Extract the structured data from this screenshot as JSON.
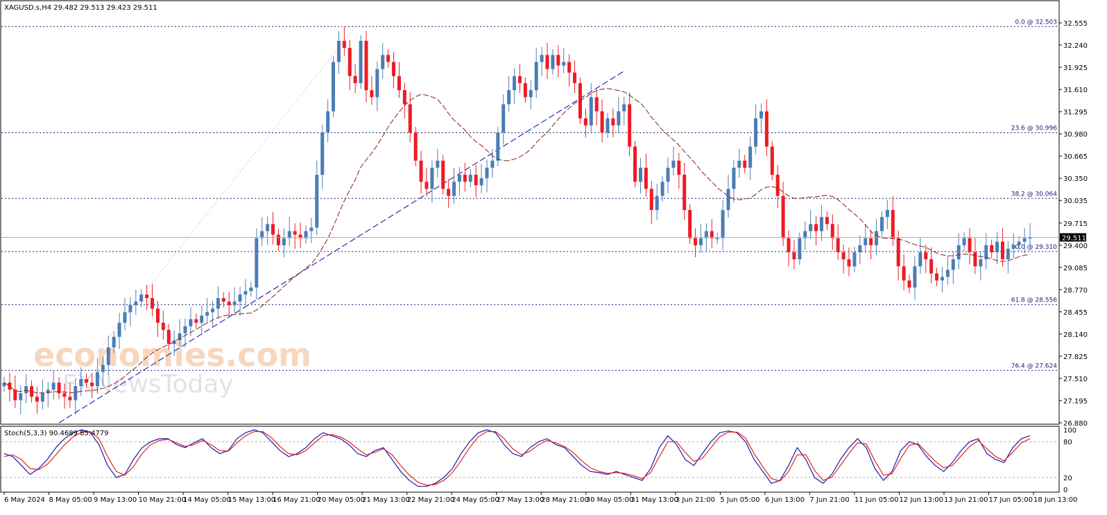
{
  "header": {
    "symbol_info": "XAGUSD.s,H4  29.482 29.513 29.423 29.511",
    "stoch_info": "Stoch(5,3,3) 90.4689 85.4779"
  },
  "watermark": {
    "line1": "economies.com",
    "line2": "FXNewsToday"
  },
  "chart_data": {
    "type": "candlestick",
    "symbol": "XAGUSD.s",
    "timeframe": "H4",
    "current_price": "29.511",
    "ylim": [
      26.88,
      32.555
    ],
    "price_ticks": [
      "32.555",
      "32.240",
      "31.925",
      "31.610",
      "31.295",
      "30.980",
      "30.665",
      "30.350",
      "30.035",
      "29.715",
      "29.400",
      "29.085",
      "28.770",
      "28.455",
      "28.140",
      "27.825",
      "27.510",
      "27.195",
      "26.880"
    ],
    "x_ticks": [
      "6 May 2024",
      "8 May 05:00",
      "9 May 13:00",
      "10 May 21:00",
      "14 May 05:00",
      "15 May 13:00",
      "16 May 21:00",
      "20 May 05:00",
      "21 May 13:00",
      "22 May 21:00",
      "24 May 05:00",
      "27 May 13:00",
      "28 May 21:00",
      "30 May 05:00",
      "31 May 13:00",
      "3 Jun 21:00",
      "5 Jun 05:00",
      "6 Jun 13:00",
      "7 Jun 21:00",
      "11 Jun 05:00",
      "12 Jun 13:00",
      "13 Jun 21:00",
      "17 Jun 05:00",
      "18 Jun 13:00"
    ],
    "fib_levels": [
      {
        "label": "0.0 @ 32.503",
        "value": 32.503
      },
      {
        "label": "23.6 @ 30.996",
        "value": 30.996
      },
      {
        "label": "38.2 @ 30.064",
        "value": 30.064
      },
      {
        "label": "50.0 @ 29.310",
        "value": 29.31
      },
      {
        "label": "61.8 @ 28.556",
        "value": 28.556
      },
      {
        "label": "76.4 @ 27.624",
        "value": 27.624
      }
    ],
    "close_series": [
      27.45,
      27.35,
      27.2,
      27.3,
      27.4,
      27.25,
      27.18,
      27.3,
      27.35,
      27.45,
      27.3,
      27.25,
      27.2,
      27.4,
      27.5,
      27.45,
      27.4,
      27.6,
      27.7,
      27.95,
      28.1,
      28.3,
      28.45,
      28.55,
      28.6,
      28.7,
      28.65,
      28.5,
      28.3,
      28.2,
      28.0,
      28.05,
      28.15,
      28.25,
      28.35,
      28.3,
      28.4,
      28.45,
      28.5,
      28.65,
      28.6,
      28.55,
      28.6,
      28.7,
      28.75,
      28.8,
      29.5,
      29.6,
      29.7,
      29.55,
      29.4,
      29.5,
      29.6,
      29.55,
      29.5,
      29.6,
      29.65,
      30.4,
      31.0,
      31.3,
      32.0,
      32.3,
      32.2,
      31.8,
      31.7,
      32.3,
      31.6,
      31.5,
      31.9,
      32.1,
      32.0,
      31.8,
      31.6,
      31.4,
      31.0,
      30.6,
      30.3,
      30.2,
      30.5,
      30.6,
      30.2,
      30.1,
      30.3,
      30.4,
      30.3,
      30.4,
      30.25,
      30.35,
      30.5,
      30.6,
      31.0,
      31.4,
      31.6,
      31.8,
      31.7,
      31.5,
      31.6,
      32.0,
      32.1,
      31.9,
      32.1,
      31.95,
      32.0,
      31.85,
      31.7,
      31.2,
      31.1,
      31.5,
      31.3,
      31.0,
      31.2,
      31.1,
      31.3,
      31.4,
      30.8,
      30.3,
      30.5,
      30.2,
      29.9,
      30.1,
      30.3,
      30.5,
      30.6,
      30.4,
      29.9,
      29.5,
      29.4,
      29.5,
      29.6,
      29.5,
      29.5,
      29.9,
      30.2,
      30.5,
      30.6,
      30.5,
      30.8,
      31.2,
      31.3,
      30.8,
      30.4,
      30.1,
      29.5,
      29.3,
      29.2,
      29.5,
      29.6,
      29.7,
      29.6,
      29.8,
      29.7,
      29.5,
      29.3,
      29.2,
      29.1,
      29.3,
      29.4,
      29.5,
      29.4,
      29.6,
      29.8,
      29.9,
      29.5,
      29.1,
      28.9,
      28.8,
      29.1,
      29.3,
      29.2,
      29.0,
      28.9,
      28.95,
      29.05,
      29.2,
      29.4,
      29.5,
      29.3,
      29.1,
      29.2,
      29.4,
      29.3,
      29.45,
      29.2,
      29.35,
      29.4,
      29.45,
      29.5,
      29.511
    ],
    "stochastic": {
      "name": "Stoch(5,3,3)",
      "main_value": "90.4689",
      "signal_value": "85.4779",
      "levels": [
        "100",
        "80",
        "20",
        "0"
      ],
      "main": [
        60,
        55,
        40,
        25,
        35,
        50,
        70,
        85,
        95,
        100,
        95,
        75,
        40,
        20,
        25,
        50,
        70,
        80,
        85,
        85,
        75,
        70,
        78,
        85,
        70,
        60,
        65,
        85,
        95,
        100,
        95,
        80,
        65,
        55,
        60,
        70,
        85,
        95,
        90,
        85,
        75,
        60,
        55,
        65,
        70,
        50,
        30,
        15,
        5,
        5,
        10,
        20,
        35,
        60,
        80,
        95,
        100,
        95,
        75,
        60,
        55,
        70,
        80,
        85,
        75,
        70,
        55,
        40,
        30,
        28,
        25,
        30,
        25,
        20,
        15,
        35,
        70,
        90,
        75,
        50,
        40,
        60,
        80,
        95,
        98,
        95,
        80,
        50,
        30,
        10,
        15,
        40,
        70,
        50,
        20,
        10,
        25,
        50,
        70,
        85,
        70,
        35,
        15,
        30,
        65,
        80,
        75,
        55,
        40,
        30,
        45,
        65,
        80,
        85,
        60,
        50,
        45,
        70,
        85,
        90
      ],
      "signal": [
        55,
        58,
        50,
        35,
        33,
        42,
        58,
        75,
        88,
        96,
        97,
        85,
        55,
        30,
        24,
        38,
        60,
        75,
        82,
        84,
        78,
        72,
        75,
        82,
        75,
        65,
        64,
        78,
        90,
        97,
        97,
        87,
        72,
        60,
        58,
        65,
        78,
        90,
        92,
        88,
        80,
        68,
        58,
        62,
        68,
        58,
        40,
        24,
        12,
        7,
        8,
        15,
        28,
        48,
        70,
        88,
        97,
        97,
        85,
        68,
        58,
        64,
        75,
        82,
        78,
        72,
        62,
        48,
        36,
        30,
        27,
        28,
        27,
        23,
        18,
        28,
        55,
        80,
        80,
        62,
        47,
        52,
        70,
        88,
        96,
        96,
        86,
        60,
        38,
        18,
        14,
        30,
        58,
        58,
        32,
        15,
        20,
        40,
        60,
        78,
        76,
        48,
        24,
        26,
        52,
        74,
        77,
        62,
        47,
        36,
        40,
        56,
        72,
        82,
        68,
        55,
        48,
        62,
        78,
        85
      ]
    }
  }
}
